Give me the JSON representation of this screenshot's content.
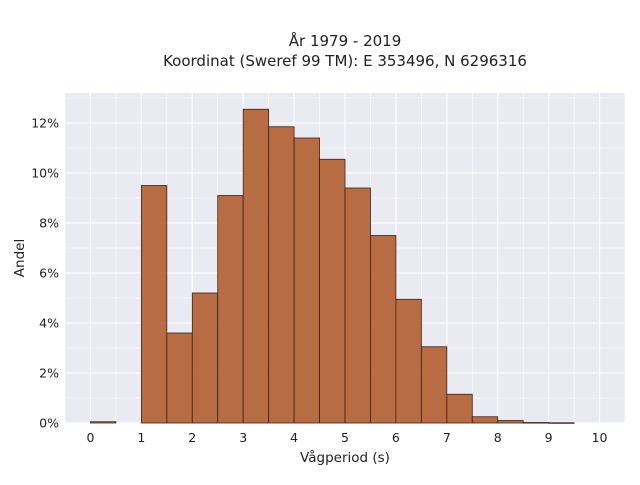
{
  "chart_data": {
    "type": "bar",
    "title_line1": "År 1979 - 2019",
    "title_line2": "Koordinat (Sweref 99 TM): E 353496, N 6296316",
    "xlabel": "Vågperiod (s)",
    "ylabel": "Andel",
    "bin_width": 0.5,
    "bins": [
      {
        "start": 0.0,
        "value": 0.05
      },
      {
        "start": 1.0,
        "value": 9.5
      },
      {
        "start": 1.5,
        "value": 3.6
      },
      {
        "start": 2.0,
        "value": 5.2
      },
      {
        "start": 2.5,
        "value": 9.1
      },
      {
        "start": 3.0,
        "value": 12.55
      },
      {
        "start": 3.5,
        "value": 11.85
      },
      {
        "start": 4.0,
        "value": 11.4
      },
      {
        "start": 4.5,
        "value": 10.55
      },
      {
        "start": 5.0,
        "value": 9.4
      },
      {
        "start": 5.5,
        "value": 7.5
      },
      {
        "start": 6.0,
        "value": 4.95
      },
      {
        "start": 6.5,
        "value": 3.05
      },
      {
        "start": 7.0,
        "value": 1.15
      },
      {
        "start": 7.5,
        "value": 0.25
      },
      {
        "start": 8.0,
        "value": 0.1
      },
      {
        "start": 8.5,
        "value": 0.02
      },
      {
        "start": 9.0,
        "value": 0.01
      }
    ],
    "x_ticks": [
      {
        "value": 0,
        "label": "0"
      },
      {
        "value": 1,
        "label": "1"
      },
      {
        "value": 2,
        "label": "2"
      },
      {
        "value": 3,
        "label": "3"
      },
      {
        "value": 4,
        "label": "4"
      },
      {
        "value": 5,
        "label": "5"
      },
      {
        "value": 6,
        "label": "6"
      },
      {
        "value": 7,
        "label": "7"
      },
      {
        "value": 8,
        "label": "8"
      },
      {
        "value": 9,
        "label": "9"
      },
      {
        "value": 10,
        "label": "10"
      }
    ],
    "y_ticks": [
      {
        "value": 0,
        "label": "0%"
      },
      {
        "value": 2,
        "label": "2%"
      },
      {
        "value": 4,
        "label": "4%"
      },
      {
        "value": 6,
        "label": "6%"
      },
      {
        "value": 8,
        "label": "8%"
      },
      {
        "value": 10,
        "label": "10%"
      },
      {
        "value": 12,
        "label": "12%"
      }
    ],
    "xlim": [
      -0.5,
      10.5
    ],
    "ylim": [
      0,
      13.2
    ],
    "grid": true,
    "colors": {
      "bar_fill": "#b5653a",
      "bar_edge": "#3a2418",
      "plot_background": "#eaeaf2",
      "grid": "#ffffff"
    }
  }
}
